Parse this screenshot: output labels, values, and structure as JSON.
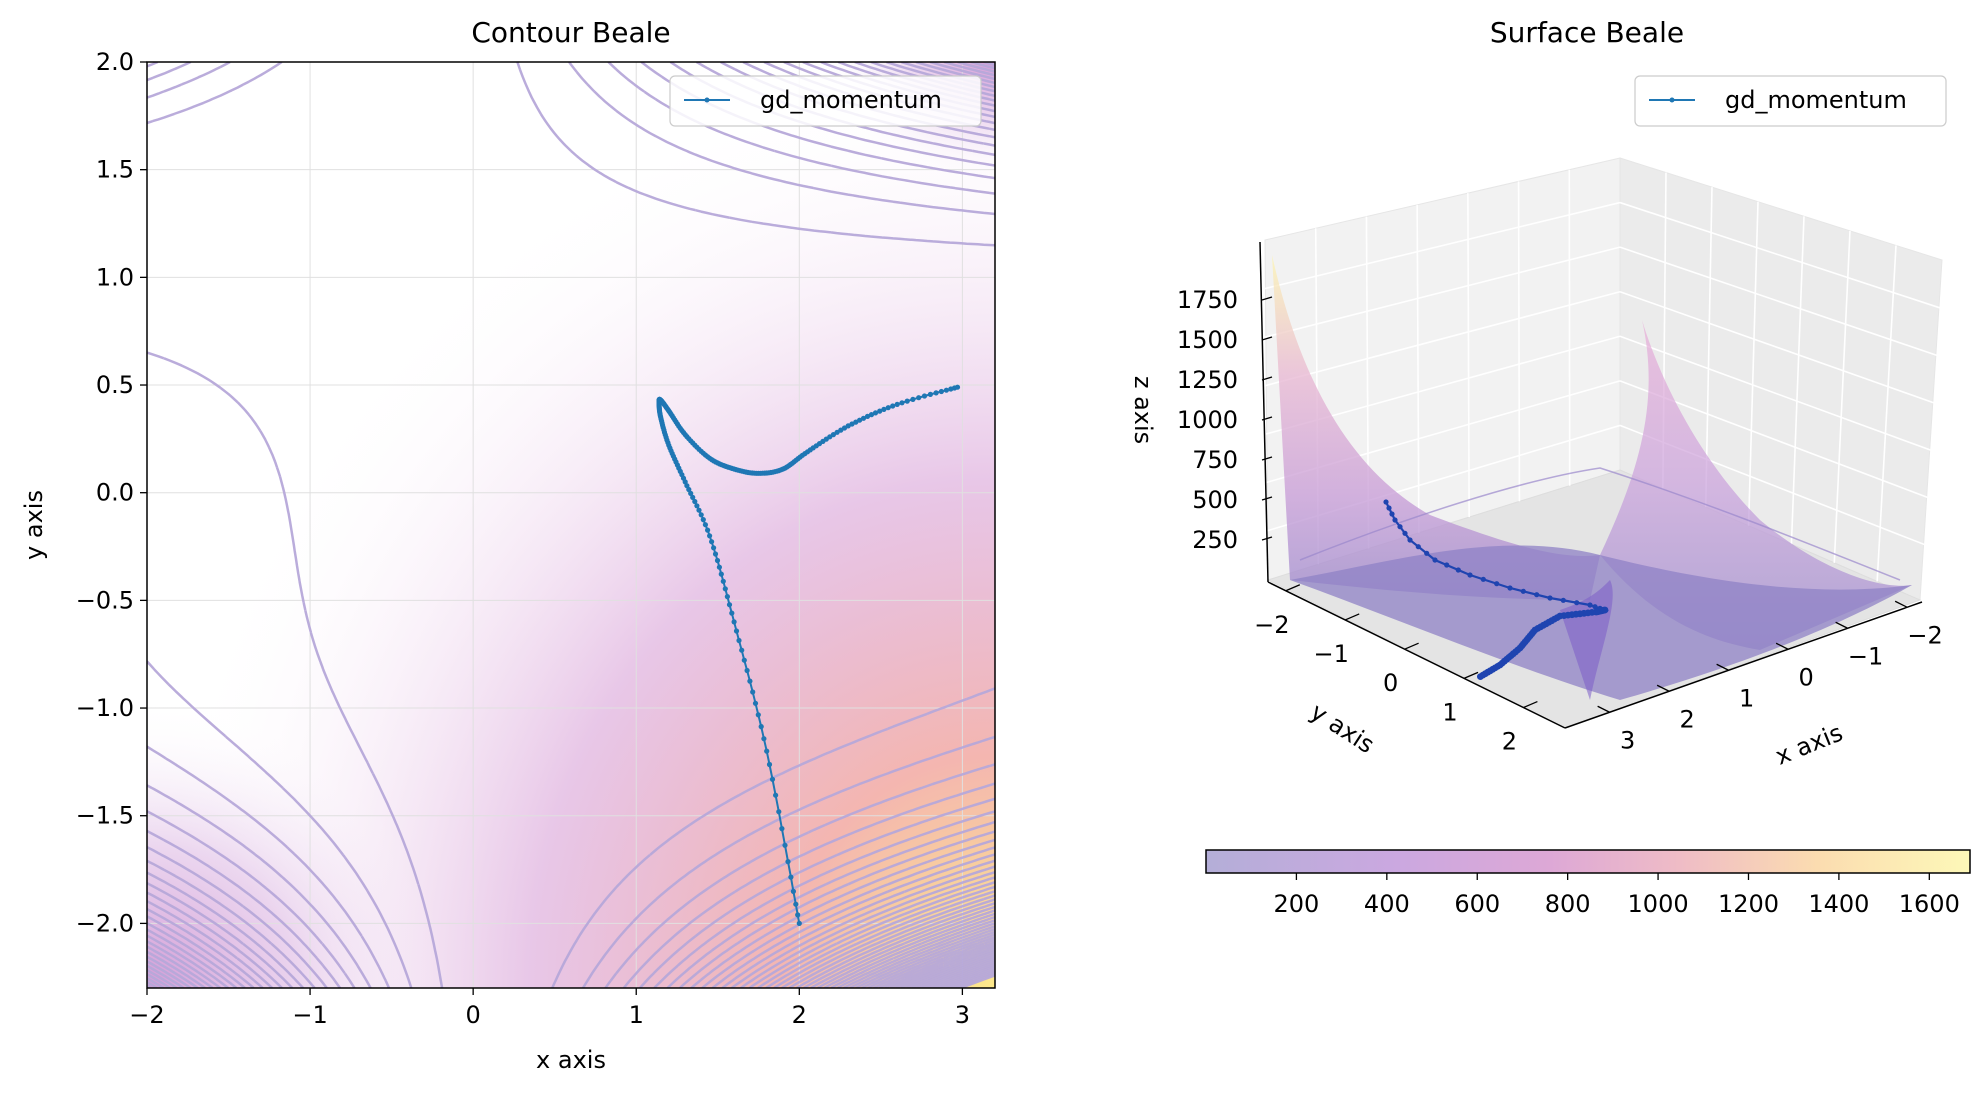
{
  "colors": {
    "contour_line": "#b6a8d9",
    "trajectory": "#1f77b4",
    "trajectory_3d": "#1f44b0",
    "colormap": [
      "#b4aed8",
      "#c8a6e0",
      "#dca6d8",
      "#efbcc6",
      "#fbe0b0",
      "#fdf7b8"
    ]
  },
  "chart_data": [
    {
      "type": "line",
      "title": "Contour Beale",
      "xlabel": "x axis",
      "ylabel": "y axis",
      "xlim": [
        -2,
        3.2
      ],
      "ylim": [
        -2.3,
        2.0
      ],
      "x_ticks": [
        -2,
        -1,
        0,
        1,
        2,
        3
      ],
      "y_ticks": [
        2.0,
        1.5,
        1.0,
        0.5,
        0.0,
        -0.5,
        -1.0,
        -1.5,
        -2.0
      ],
      "x_tick_labels": [
        "−2",
        "−1",
        "0",
        "1",
        "2",
        "3"
      ],
      "y_tick_labels": [
        "2.0",
        "1.5",
        "1.0",
        "0.5",
        "0.0",
        "−0.5",
        "−1.0",
        "−1.5",
        "−2.0"
      ],
      "grid": true,
      "legend_position": "top-right",
      "series": [
        {
          "name": "gd_momentum",
          "x": [
            2.0,
            1.8,
            1.6,
            1.45,
            1.3,
            1.2,
            1.15,
            1.14,
            1.15,
            1.2,
            1.3,
            1.45,
            1.6,
            1.75,
            1.9,
            2.05,
            2.3,
            2.6,
            2.97
          ],
          "y": [
            -2.0,
            -1.2,
            -0.6,
            -0.2,
            0.05,
            0.22,
            0.35,
            0.42,
            0.43,
            0.38,
            0.27,
            0.16,
            0.11,
            0.09,
            0.11,
            0.19,
            0.31,
            0.41,
            0.49
          ]
        }
      ]
    },
    {
      "type": "surface",
      "title": "Surface Beale",
      "xlabel": "x axis",
      "ylabel": "y axis",
      "zlabel": "z axis",
      "x_tick_labels": [
        "−2",
        "−1",
        "0",
        "1",
        "2",
        "3"
      ],
      "y_tick_labels": [
        "−2",
        "−1",
        "0",
        "1",
        "2"
      ],
      "z_tick_labels": [
        "250",
        "500",
        "750",
        "1000",
        "1250",
        "1500",
        "1750"
      ],
      "legend_position": "top-right",
      "series": [
        {
          "name": "gd_momentum"
        }
      ],
      "colorbar": {
        "orientation": "horizontal",
        "tick_values": [
          200,
          400,
          600,
          800,
          1000,
          1200,
          1400,
          1600
        ],
        "tick_labels": [
          "200",
          "400",
          "600",
          "800",
          "1000",
          "1200",
          "1400",
          "1600"
        ],
        "range": [
          0,
          1690
        ]
      }
    }
  ]
}
